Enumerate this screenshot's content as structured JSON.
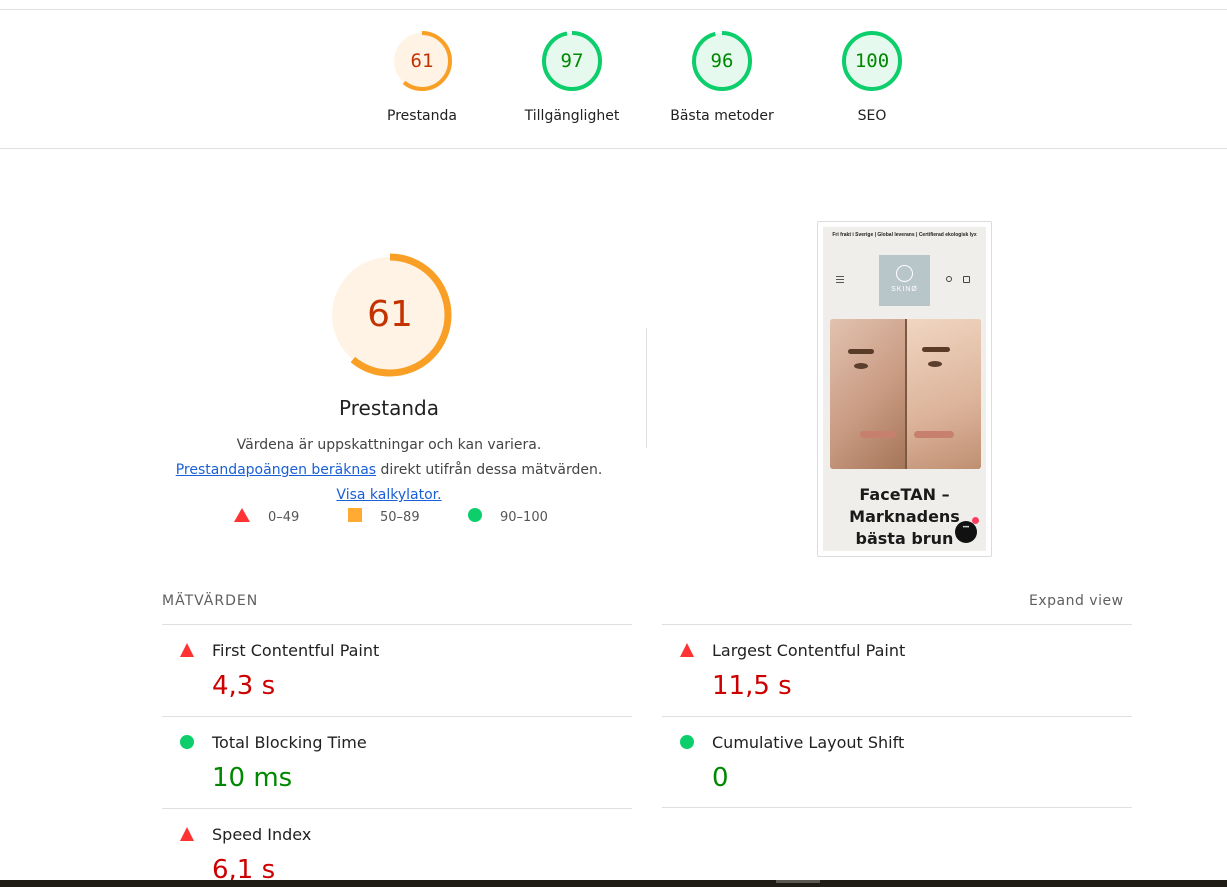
{
  "scores": [
    {
      "value": "61",
      "label": "Prestanda",
      "fraction": 0.61,
      "color": "#fa9f25",
      "text_color": "#c33300",
      "bg": "#fff3e6"
    },
    {
      "value": "97",
      "label": "Tillgänglighet",
      "fraction": 0.97,
      "color": "#0cce6b",
      "text_color": "#008800",
      "bg": "#e6f9ee"
    },
    {
      "value": "96",
      "label": "Bästa metoder",
      "fraction": 0.96,
      "color": "#0cce6b",
      "text_color": "#008800",
      "bg": "#e6f9ee"
    },
    {
      "value": "100",
      "label": "SEO",
      "fraction": 1.0,
      "color": "#0cce6b",
      "text_color": "#008800",
      "bg": "#e6f9ee"
    }
  ],
  "performance": {
    "score": "61",
    "fraction": 0.61,
    "title": "Prestanda",
    "desc_part1": "Värdena är uppskattningar och kan variera. ",
    "desc_link1": "Prestandapoängen beräknas",
    "desc_part2": " direkt utifrån dessa mätvärden. ",
    "desc_link2": "Visa kalkylator."
  },
  "legend": [
    {
      "range": "0–49",
      "shape": "triangle",
      "color": "#ff3333"
    },
    {
      "range": "50–89",
      "shape": "square",
      "color": "#ffaa33"
    },
    {
      "range": "90–100",
      "shape": "circle",
      "color": "#0cce6b"
    }
  ],
  "screenshot": {
    "banner": "Fri frakt i Sverige | Global leverans | Certifierad ekologisk lyx",
    "logo_text": "SKINØ",
    "headline": "FaceTAN – Marknadens bästa brun"
  },
  "metrics": {
    "heading": "MÄTVÄRDEN",
    "expand_label": "Expand view",
    "items": [
      {
        "label": "First Contentful Paint",
        "value": "4,3 s",
        "status": "fail"
      },
      {
        "label": "Largest Contentful Paint",
        "value": "11,5 s",
        "status": "fail"
      },
      {
        "label": "Total Blocking Time",
        "value": "10 ms",
        "status": "pass"
      },
      {
        "label": "Cumulative Layout Shift",
        "value": "0",
        "status": "pass"
      },
      {
        "label": "Speed Index",
        "value": "6,1 s",
        "status": "fail"
      }
    ]
  }
}
